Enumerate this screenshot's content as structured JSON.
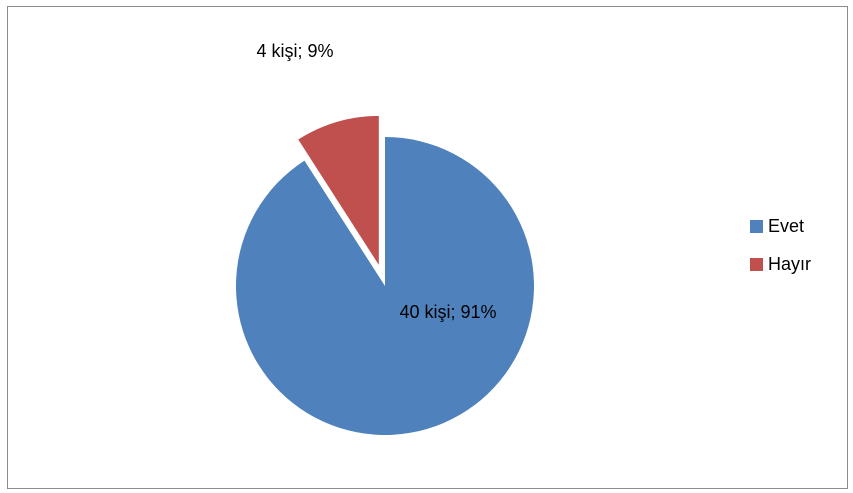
{
  "chart_data": {
    "type": "pie",
    "categories": [
      "Evet",
      "Hayır"
    ],
    "values": [
      40,
      4
    ],
    "percentages": [
      91,
      9
    ],
    "data_labels": [
      "40 kişi; 91%",
      "4 kişi; 9%"
    ],
    "colors": [
      "#4f81bd",
      "#c0504d"
    ],
    "exploded": [
      false,
      true
    ],
    "legend_position": "right"
  }
}
